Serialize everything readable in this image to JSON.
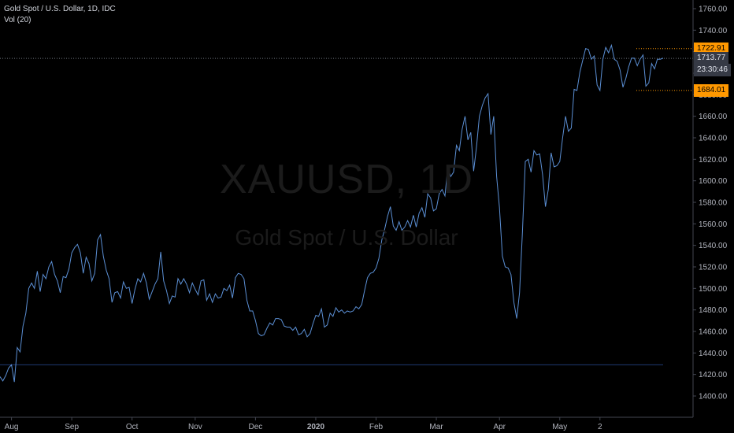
{
  "header": {
    "title": "Gold Spot / U.S. Dollar, 1D, IDC",
    "indicator": "Vol (20)"
  },
  "watermark": {
    "symbol": "XAUUSD, 1D",
    "name": "Gold Spot / U.S. Dollar"
  },
  "price_labels": {
    "high": "1722.91",
    "last": "1713.77",
    "countdown": "23:30:46",
    "low": "1684.01"
  },
  "colors": {
    "background": "#000000",
    "line": "#5b8fd4",
    "axis_text": "#b2b5be",
    "high_low_tag": "#ff9800",
    "last_tag": "#363a45",
    "reference_line": "#1e3a73"
  },
  "chart_data": {
    "type": "line",
    "title": "Gold Spot / U.S. Dollar, 1D, IDC",
    "ylim": [
      1390,
      1770
    ],
    "y_ticks": [
      1400,
      1420,
      1440,
      1460,
      1480,
      1500,
      1520,
      1540,
      1560,
      1580,
      1600,
      1620,
      1640,
      1660,
      1680,
      1700,
      1720,
      1740,
      1760
    ],
    "x_ticks": [
      {
        "label": "Aug",
        "index": 4
      },
      {
        "label": "Sep",
        "index": 25
      },
      {
        "label": "Oct",
        "index": 46
      },
      {
        "label": "Nov",
        "index": 68
      },
      {
        "label": "Dec",
        "index": 89
      },
      {
        "label": "2020",
        "index": 110
      },
      {
        "label": "Feb",
        "index": 131
      },
      {
        "label": "Mar",
        "index": 152
      },
      {
        "label": "Apr",
        "index": 174
      },
      {
        "label": "May",
        "index": 195
      },
      {
        "label": "2",
        "index": 209
      }
    ],
    "horizontal_lines": [
      {
        "value": 1713.77,
        "style": "dotted",
        "label": "last"
      },
      {
        "value": 1429,
        "style": "solid",
        "label": "reference"
      }
    ],
    "series": [
      {
        "values": [
          1418,
          1414,
          1419,
          1426,
          1429,
          1413,
          1445,
          1441,
          1465,
          1477,
          1500,
          1505,
          1500,
          1516,
          1497,
          1513,
          1509,
          1520,
          1525,
          1513,
          1507,
          1496,
          1511,
          1510,
          1518,
          1533,
          1538,
          1541,
          1533,
          1514,
          1529,
          1523,
          1507,
          1514,
          1545,
          1550,
          1530,
          1517,
          1509,
          1487,
          1496,
          1497,
          1491,
          1506,
          1500,
          1501,
          1486,
          1499,
          1509,
          1506,
          1514,
          1505,
          1490,
          1497,
          1504,
          1509,
          1534,
          1507,
          1498,
          1486,
          1493,
          1492,
          1509,
          1504,
          1509,
          1504,
          1496,
          1505,
          1499,
          1494,
          1507,
          1508,
          1489,
          1495,
          1487,
          1495,
          1491,
          1492,
          1500,
          1498,
          1503,
          1491,
          1510,
          1514,
          1513,
          1509,
          1489,
          1479,
          1479,
          1470,
          1458,
          1456,
          1457,
          1463,
          1468,
          1466,
          1472,
          1472,
          1471,
          1465,
          1464,
          1464,
          1461,
          1464,
          1457,
          1458,
          1462,
          1455,
          1458,
          1467,
          1475,
          1474,
          1481,
          1464,
          1466,
          1477,
          1474,
          1482,
          1478,
          1480,
          1477,
          1479,
          1478,
          1479,
          1483,
          1481,
          1485,
          1498,
          1510,
          1514,
          1515,
          1519,
          1528,
          1545,
          1555,
          1567,
          1576,
          1558,
          1554,
          1562,
          1554,
          1557,
          1563,
          1557,
          1568,
          1557,
          1570,
          1575,
          1566,
          1588,
          1584,
          1572,
          1574,
          1588,
          1592,
          1586,
          1613,
          1604,
          1608,
          1633,
          1628,
          1648,
          1660,
          1638,
          1645,
          1609,
          1632,
          1660,
          1670,
          1677,
          1681,
          1643,
          1660,
          1604,
          1575,
          1530,
          1520,
          1519,
          1513,
          1487,
          1472,
          1496,
          1553,
          1618,
          1620,
          1608,
          1628,
          1624,
          1625,
          1606,
          1576,
          1592,
          1626,
          1613,
          1614,
          1618,
          1640,
          1660,
          1646,
          1649,
          1685,
          1684,
          1701,
          1712,
          1723,
          1722,
          1713,
          1716,
          1689,
          1684,
          1713,
          1724,
          1719,
          1726,
          1713,
          1711,
          1703,
          1687,
          1695,
          1706,
          1714,
          1714,
          1707,
          1713,
          1717,
          1688,
          1691,
          1709,
          1704,
          1713,
          1713,
          1714
        ]
      }
    ]
  }
}
